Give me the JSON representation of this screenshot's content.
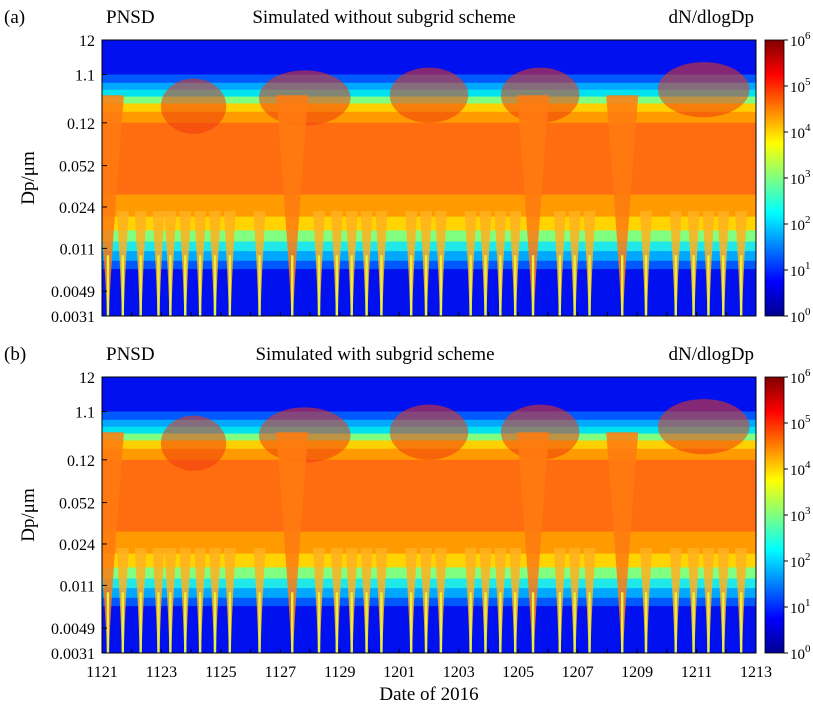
{
  "chart_data": [
    {
      "type": "heatmap",
      "panel_label": "(a)",
      "left_title": "PNSD",
      "title": "Simulated without subgrid scheme",
      "right_title": "dN/dlogDp",
      "ylabel": "Dp/μm",
      "xlabel": "",
      "y_scale": "log",
      "ylim": [
        0.0031,
        12
      ],
      "y_ticks": [
        "12",
        "1.1",
        "0.12",
        "0.052",
        "0.024",
        "0.011",
        "0.0049",
        "0.0031"
      ],
      "x_ticks": [],
      "colorbar": {
        "scale": "log",
        "range": [
          1,
          1000000
        ],
        "tick_exponents": [
          0,
          1,
          2,
          3,
          4,
          5,
          6
        ]
      },
      "dip_days": [
        1121.2,
        1121.7,
        1122.3,
        1122.9,
        1123.3,
        1123.8,
        1124.3,
        1124.8,
        1125.3,
        1126.3,
        1127.4,
        1128.3,
        1128.9,
        1129.4,
        1129.9,
        1130.4,
        1201.4,
        1201.9,
        1202.4,
        1203.4,
        1203.9,
        1204.4,
        1204.9,
        1205.5,
        1206.4,
        1206.9,
        1207.4,
        1208.5,
        1209.3,
        1210.3,
        1210.9,
        1211.4,
        1211.9,
        1212.5
      ],
      "deep_dip_days": [
        1127.4,
        1205.5,
        1208.5,
        1121.2
      ]
    },
    {
      "type": "heatmap",
      "panel_label": "(b)",
      "left_title": "PNSD",
      "title": "Simulated with subgrid scheme",
      "right_title": "dN/dlogDp",
      "ylabel": "Dp/μm",
      "xlabel": "Date of 2016",
      "y_scale": "log",
      "ylim": [
        0.0031,
        12
      ],
      "y_ticks": [
        "12",
        "1.1",
        "0.12",
        "0.052",
        "0.024",
        "0.011",
        "0.0049",
        "0.0031"
      ],
      "x_ticks": [
        "1121",
        "1123",
        "1125",
        "1127",
        "1129",
        "1201",
        "1203",
        "1205",
        "1207",
        "1209",
        "1211",
        "1213"
      ],
      "colorbar": {
        "scale": "log",
        "range": [
          1,
          1000000
        ],
        "tick_exponents": [
          0,
          1,
          2,
          3,
          4,
          5,
          6
        ]
      },
      "dip_days": [
        1121.2,
        1121.7,
        1122.3,
        1122.9,
        1123.3,
        1123.8,
        1124.3,
        1124.8,
        1125.3,
        1126.3,
        1127.4,
        1128.3,
        1128.9,
        1129.4,
        1129.9,
        1130.4,
        1201.4,
        1201.9,
        1202.4,
        1203.4,
        1203.9,
        1204.4,
        1204.9,
        1205.5,
        1206.4,
        1206.9,
        1207.4,
        1208.5,
        1209.3,
        1210.3,
        1210.9,
        1211.4,
        1211.9,
        1212.5
      ],
      "deep_dip_days": [
        1127.4,
        1205.5,
        1208.5,
        1121.2
      ]
    }
  ]
}
